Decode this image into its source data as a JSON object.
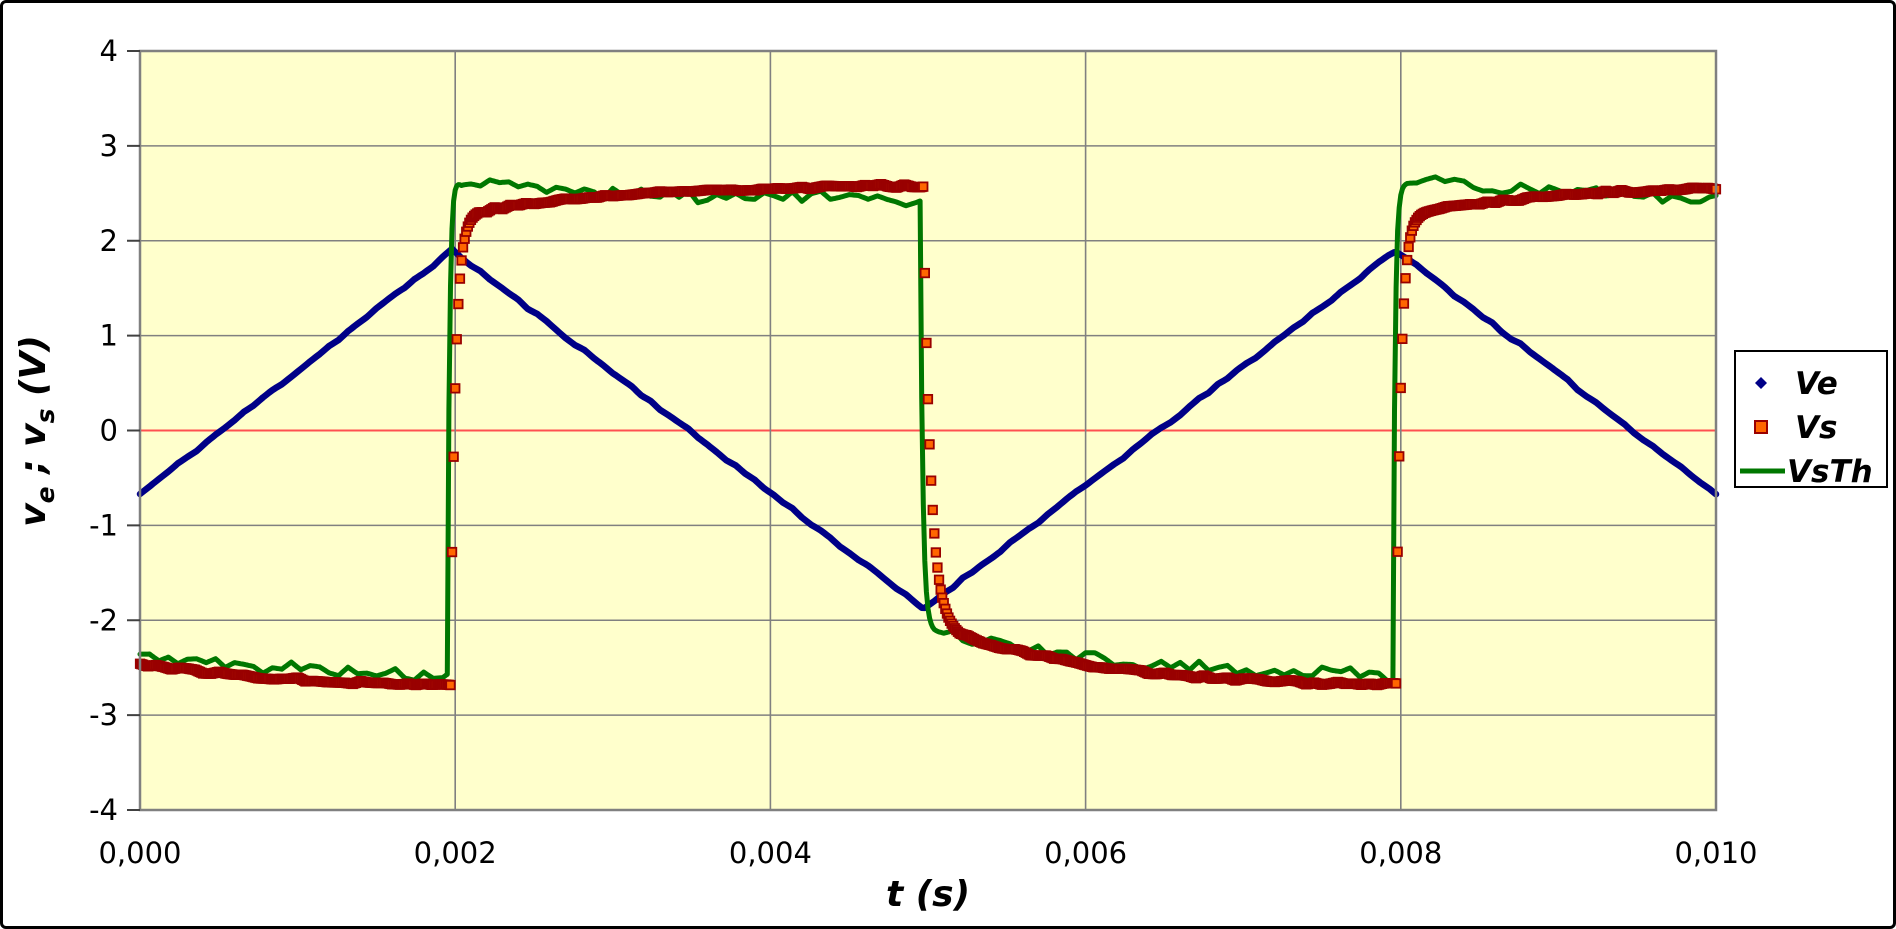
{
  "window": {
    "background": "#FFFFFF",
    "border_color": "#000000"
  },
  "chart_data": {
    "type": "line",
    "title": "",
    "xlabel": "t  (s)",
    "ylabel_parts": [
      {
        "text": "v",
        "sub": "e"
      },
      {
        "text": " ; "
      },
      {
        "text": "v",
        "sub": "s"
      },
      {
        "text": "  (V)"
      }
    ],
    "xlim": [
      0.0,
      0.01
    ],
    "ylim": [
      -4,
      4
    ],
    "x_ticks": [
      {
        "value": 0.0,
        "label": "0,000"
      },
      {
        "value": 0.002,
        "label": "0,002"
      },
      {
        "value": 0.004,
        "label": "0,004"
      },
      {
        "value": 0.006,
        "label": "0,006"
      },
      {
        "value": 0.008,
        "label": "0,008"
      },
      {
        "value": 0.01,
        "label": "0,010"
      }
    ],
    "y_ticks": [
      {
        "value": -4,
        "label": "-4"
      },
      {
        "value": -3,
        "label": "-3"
      },
      {
        "value": -2,
        "label": "-2"
      },
      {
        "value": -1,
        "label": "-1"
      },
      {
        "value": 0,
        "label": "0"
      },
      {
        "value": 1,
        "label": "1"
      },
      {
        "value": 2,
        "label": "2"
      },
      {
        "value": 3,
        "label": "3"
      },
      {
        "value": 4,
        "label": "4"
      }
    ],
    "plot_bg": "#FFFFCC",
    "grid": {
      "color": "#808080",
      "zero_line_color": "#FF5050",
      "frame_color": "#808080",
      "vertical_at": [
        0.002,
        0.004,
        0.006,
        0.008
      ],
      "horizontal_at": [
        -3,
        -2,
        -1,
        1,
        2,
        3
      ]
    },
    "series": [
      {
        "id": "ve",
        "name": "Ve",
        "type": "scatter-line",
        "color": "#000087",
        "line_width": 6.5,
        "marker": "dot",
        "sample_dt": 2e-05,
        "noise_amp": 0.016,
        "noise_step": 6e-05,
        "seed": 11,
        "triangle_vertices": [
          [
            0.0,
            -0.67
          ],
          [
            0.00198,
            1.9
          ],
          [
            0.00497,
            -1.88
          ],
          [
            0.00797,
            1.9
          ],
          [
            0.01,
            -0.67
          ]
        ]
      },
      {
        "id": "vs",
        "name": "Vs",
        "type": "scatter",
        "marker": "square",
        "marker_size": 8.5,
        "marker_fill": "#FF6600",
        "marker_stroke": "#990000",
        "marker_stroke_width": 1.8,
        "sample_dt": 1e-05,
        "noise_amp": 0.02,
        "noise_step": 5e-05,
        "seed": 77,
        "model": {
          "rise_times": [
            0.00197,
            0.00797
          ],
          "fall_times": [
            0.00497
          ],
          "high": {
            "target": 2.6,
            "amp": 0.35,
            "tau": 0.001
          },
          "low": {
            "target": -2.72,
            "amp": 0.72,
            "tau": 0.001
          },
          "rise_tau": 3e-05,
          "fall_tau": 4.5e-05,
          "initial_elapsed": 0.001
        }
      },
      {
        "id": "vsth",
        "name": "VsTh",
        "type": "line",
        "color": "#007700",
        "line_width": 5,
        "sample_dt": 1e-05,
        "noise_amp": 0.058,
        "noise_step": 6e-05,
        "seed": 5,
        "model": {
          "rise_times": [
            0.00195,
            0.00795
          ],
          "fall_times": [
            0.00495
          ],
          "high": {
            "target": 2.4,
            "amp": -0.24,
            "tau": 0.0014
          },
          "low": {
            "target": -2.62,
            "amp": 0.57,
            "tau": 0.0012
          },
          "rise_tau": 1.3e-05,
          "fall_tau": 1.6e-05,
          "initial_elapsed": 0.001
        }
      }
    ],
    "legend": {
      "position": "right",
      "bg": "#FFFFFF",
      "border_color": "#000000",
      "entries": [
        {
          "series": "ve",
          "label": "Ve"
        },
        {
          "series": "vs",
          "label": "Vs"
        },
        {
          "series": "vsth",
          "label": "VsTh"
        }
      ]
    }
  }
}
